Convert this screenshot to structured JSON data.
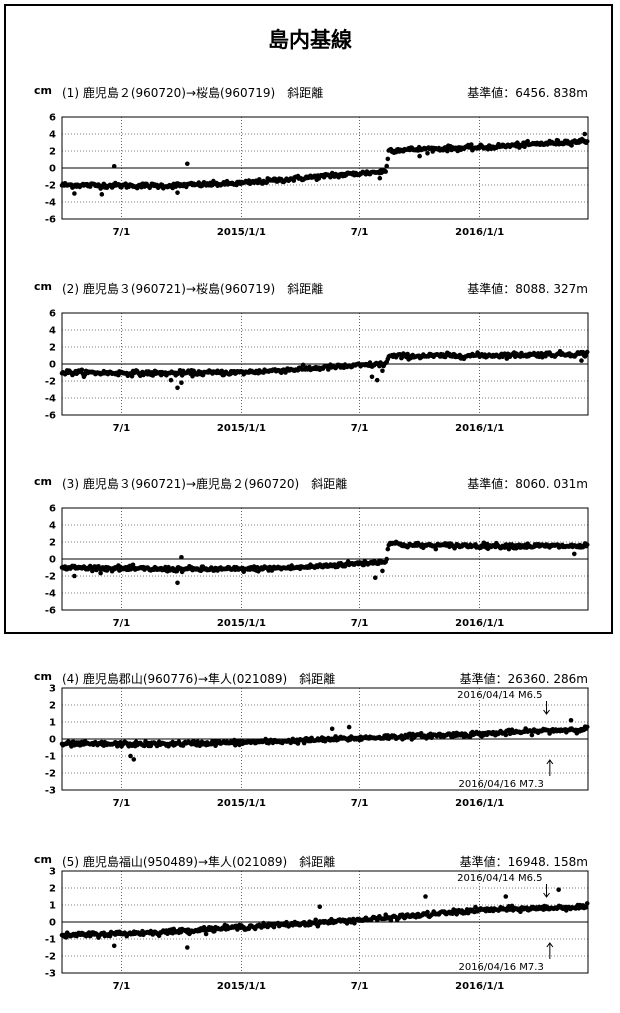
{
  "main_title": "島内基線",
  "unit_label": "cm",
  "x_tick_labels": [
    "7/1",
    "2015/1/1",
    "7/1",
    "2016/1/1"
  ],
  "chart_data": [
    {
      "type": "scatter",
      "title": "(1) 鹿児島２(960720)→桜島(960719)　斜距離",
      "ref_value": "基準値：6456. 838m",
      "ylabel": "cm",
      "ylim": [
        -6,
        6
      ],
      "yticks": [
        6,
        4,
        2,
        0,
        -2,
        -4,
        -6
      ],
      "xlim": [
        "2014-04-01",
        "2016-06-15"
      ],
      "grid": true,
      "trend": [
        [
          "2014-04-01",
          -2.0
        ],
        [
          "2014-09-01",
          -2.1
        ],
        [
          "2015-01-01",
          -1.8
        ],
        [
          "2015-04-01",
          -1.2
        ],
        [
          "2015-08-10",
          -0.4
        ],
        [
          "2015-08-15",
          2.1
        ],
        [
          "2016-01-01",
          2.4
        ],
        [
          "2016-06-15",
          3.2
        ]
      ],
      "outliers": [
        [
          "2014-04-20",
          -3.0
        ],
        [
          "2014-06-01",
          -3.1
        ],
        [
          "2014-06-20",
          0.2
        ],
        [
          "2014-10-10",
          0.5
        ],
        [
          "2014-09-25",
          -2.9
        ],
        [
          "2015-05-20",
          -0.6
        ],
        [
          "2015-06-25",
          -0.6
        ],
        [
          "2015-08-01",
          -1.2
        ],
        [
          "2015-10-01",
          1.4
        ],
        [
          "2016-06-10",
          4.0
        ]
      ]
    },
    {
      "type": "scatter",
      "title": "(2) 鹿児島３(960721)→桜島(960719)　斜距離",
      "ref_value": "基準値：8088. 327m",
      "ylabel": "cm",
      "ylim": [
        -6,
        6
      ],
      "yticks": [
        6,
        4,
        2,
        0,
        -2,
        -4,
        -6
      ],
      "xlim": [
        "2014-04-01",
        "2016-06-15"
      ],
      "grid": true,
      "trend": [
        [
          "2014-04-01",
          -1.0
        ],
        [
          "2014-09-01",
          -1.1
        ],
        [
          "2015-01-01",
          -1.0
        ],
        [
          "2015-04-01",
          -0.6
        ],
        [
          "2015-08-10",
          0.0
        ],
        [
          "2015-08-15",
          0.9
        ],
        [
          "2016-01-01",
          1.0
        ],
        [
          "2016-06-15",
          1.2
        ]
      ],
      "outliers": [
        [
          "2014-09-25",
          -2.8
        ],
        [
          "2014-10-01",
          -2.2
        ],
        [
          "2014-09-15",
          -1.9
        ],
        [
          "2015-07-20",
          -1.5
        ],
        [
          "2015-07-28",
          -1.9
        ],
        [
          "2015-08-05",
          -0.8
        ],
        [
          "2016-06-05",
          0.4
        ]
      ]
    },
    {
      "type": "scatter",
      "title": "(3) 鹿児島３(960721)→鹿児島２(960720)　斜距離",
      "ref_value": "基準値：8060. 031m",
      "ylabel": "cm",
      "ylim": [
        -6,
        6
      ],
      "yticks": [
        6,
        4,
        2,
        0,
        -2,
        -4,
        -6
      ],
      "xlim": [
        "2014-04-01",
        "2016-06-15"
      ],
      "grid": true,
      "trend": [
        [
          "2014-04-01",
          -1.0
        ],
        [
          "2014-09-01",
          -1.2
        ],
        [
          "2015-01-01",
          -1.2
        ],
        [
          "2015-04-01",
          -1.0
        ],
        [
          "2015-08-10",
          -0.3
        ],
        [
          "2015-08-15",
          1.9
        ],
        [
          "2015-09-15",
          1.6
        ],
        [
          "2016-06-15",
          1.5
        ]
      ],
      "outliers": [
        [
          "2014-04-20",
          -2.0
        ],
        [
          "2014-09-25",
          -2.8
        ],
        [
          "2014-10-01",
          0.2
        ],
        [
          "2015-07-25",
          -2.2
        ],
        [
          "2015-08-05",
          -1.4
        ],
        [
          "2016-05-25",
          0.6
        ]
      ]
    },
    {
      "type": "scatter",
      "title": "(4) 鹿児島郡山(960776)→隼人(021089)　斜距離",
      "ref_value": "基準値：26360. 286m",
      "ylabel": "cm",
      "ylim": [
        -3,
        3
      ],
      "yticks": [
        3,
        2,
        1,
        0,
        -1,
        -2,
        -3
      ],
      "xlim": [
        "2014-04-01",
        "2016-06-15"
      ],
      "grid": true,
      "trend": [
        [
          "2014-04-01",
          -0.3
        ],
        [
          "2014-09-01",
          -0.3
        ],
        [
          "2015-01-01",
          -0.2
        ],
        [
          "2015-04-01",
          -0.1
        ],
        [
          "2015-08-01",
          0.1
        ],
        [
          "2016-01-01",
          0.3
        ],
        [
          "2016-06-15",
          0.6
        ]
      ],
      "outliers": [
        [
          "2014-07-15",
          -1.0
        ],
        [
          "2014-07-20",
          -1.2
        ],
        [
          "2015-06-15",
          0.7
        ],
        [
          "2015-05-20",
          0.6
        ],
        [
          "2016-05-20",
          1.1
        ]
      ],
      "annotations": [
        {
          "text": "2016/04/14 M6.5",
          "date": "2016-04-14",
          "position": "above"
        },
        {
          "text": "2016/04/16 M7.3",
          "date": "2016-04-16",
          "position": "below"
        }
      ]
    },
    {
      "type": "scatter",
      "title": "(5) 鹿児島福山(950489)→隼人(021089)　斜距離",
      "ref_value": "基準値：16948. 158m",
      "ylabel": "cm",
      "ylim": [
        -3,
        3
      ],
      "yticks": [
        3,
        2,
        1,
        0,
        -1,
        -2,
        -3
      ],
      "xlim": [
        "2014-04-01",
        "2016-06-15"
      ],
      "grid": true,
      "trend": [
        [
          "2014-04-01",
          -0.8
        ],
        [
          "2014-09-01",
          -0.6
        ],
        [
          "2015-01-01",
          -0.3
        ],
        [
          "2015-04-01",
          -0.1
        ],
        [
          "2015-08-01",
          0.2
        ],
        [
          "2016-01-01",
          0.7
        ],
        [
          "2016-06-15",
          0.9
        ]
      ],
      "outliers": [
        [
          "2014-06-20",
          -1.4
        ],
        [
          "2014-10-10",
          -1.5
        ],
        [
          "2015-05-01",
          0.9
        ],
        [
          "2015-10-10",
          1.5
        ],
        [
          "2016-02-10",
          1.5
        ],
        [
          "2016-05-01",
          1.9
        ]
      ],
      "annotations": [
        {
          "text": "2016/04/14 M6.5",
          "date": "2016-04-14",
          "position": "above"
        },
        {
          "text": "2016/04/16 M7.3",
          "date": "2016-04-16",
          "position": "below"
        }
      ]
    }
  ]
}
